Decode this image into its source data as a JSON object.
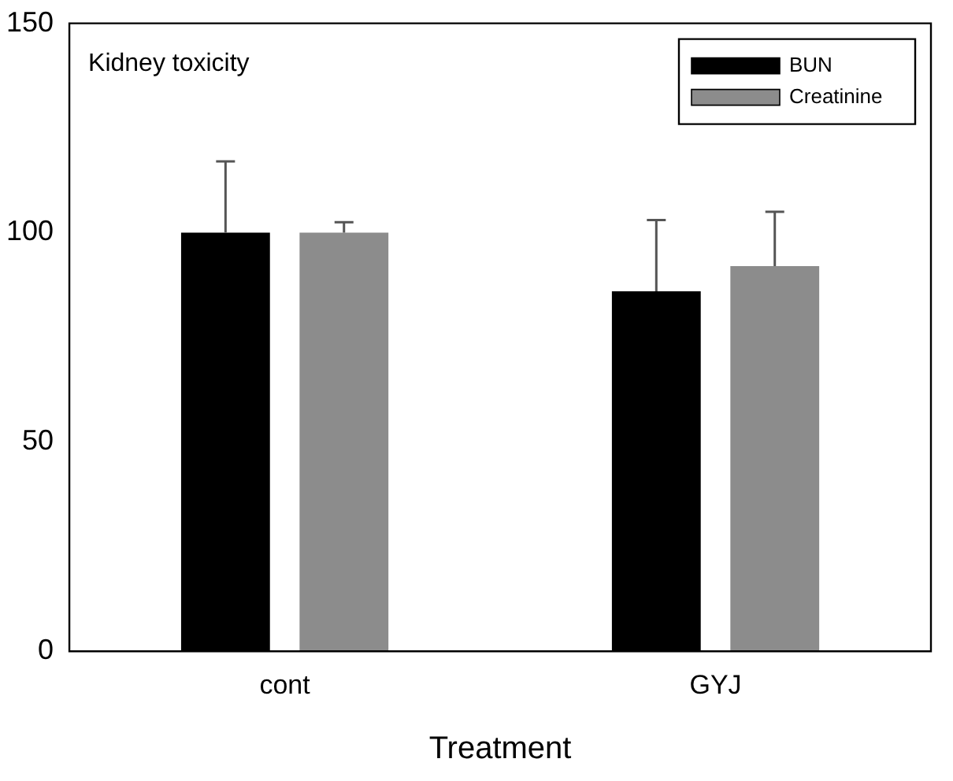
{
  "chart_data": {
    "type": "bar",
    "title": "Kidney toxicity",
    "xlabel": "Treatment",
    "categories": [
      "cont",
      "GYJ"
    ],
    "series": [
      {
        "name": "BUN",
        "color": "#000000",
        "values": [
          100,
          86
        ],
        "errors": [
          [
            100,
            117
          ],
          [
            86,
            103
          ]
        ]
      },
      {
        "name": "Creatinine",
        "color": "#8c8c8c",
        "values": [
          100,
          92
        ],
        "errors": [
          [
            100,
            102.5
          ],
          [
            92,
            105
          ]
        ]
      }
    ],
    "ylim": [
      0,
      150
    ],
    "yticks": [
      0,
      50,
      100,
      150
    ],
    "grid": false,
    "legend": "top right"
  }
}
